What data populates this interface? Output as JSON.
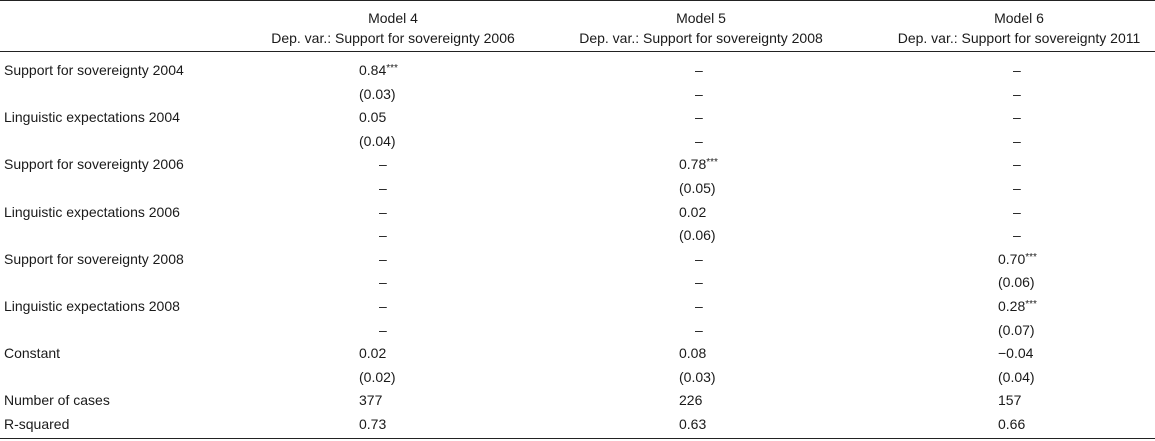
{
  "header": {
    "models": [
      {
        "name": "Model 4",
        "dep_var": "Dep. var.: Support for sovereignty 2006"
      },
      {
        "name": "Model 5",
        "dep_var": "Dep. var.: Support for sovereignty 2008"
      },
      {
        "name": "Model 6",
        "dep_var": "Dep. var.: Support for sovereignty 2011"
      }
    ]
  },
  "rows": [
    {
      "label": "Support for sovereignty 2004",
      "cells": [
        "0.84",
        "–",
        "–"
      ],
      "stars": [
        "***",
        "",
        ""
      ]
    },
    {
      "label": "",
      "cells": [
        "(0.03)",
        "–",
        "–"
      ],
      "stars": [
        "",
        "",
        ""
      ]
    },
    {
      "label": "Linguistic expectations 2004",
      "cells": [
        "0.05",
        "–",
        "–"
      ],
      "stars": [
        "",
        "",
        ""
      ]
    },
    {
      "label": "",
      "cells": [
        "(0.04)",
        "–",
        "–"
      ],
      "stars": [
        "",
        "",
        ""
      ]
    },
    {
      "label": "Support for sovereignty 2006",
      "cells": [
        "–",
        "0.78",
        "–"
      ],
      "stars": [
        "",
        "***",
        ""
      ]
    },
    {
      "label": "",
      "cells": [
        "–",
        "(0.05)",
        "–"
      ],
      "stars": [
        "",
        "",
        ""
      ]
    },
    {
      "label": "Linguistic expectations 2006",
      "cells": [
        "–",
        "0.02",
        "–"
      ],
      "stars": [
        "",
        "",
        ""
      ]
    },
    {
      "label": "",
      "cells": [
        "–",
        "(0.06)",
        "–"
      ],
      "stars": [
        "",
        "",
        ""
      ]
    },
    {
      "label": "Support for sovereignty 2008",
      "cells": [
        "–",
        "–",
        "0.70"
      ],
      "stars": [
        "",
        "",
        "***"
      ]
    },
    {
      "label": "",
      "cells": [
        "–",
        "–",
        "(0.06)"
      ],
      "stars": [
        "",
        "",
        ""
      ]
    },
    {
      "label": "Linguistic expectations 2008",
      "cells": [
        "–",
        "–",
        "0.28"
      ],
      "stars": [
        "",
        "",
        "***"
      ]
    },
    {
      "label": "",
      "cells": [
        "–",
        "–",
        "(0.07)"
      ],
      "stars": [
        "",
        "",
        ""
      ]
    },
    {
      "label": "Constant",
      "cells": [
        "0.02",
        "0.08",
        "−0.04"
      ],
      "stars": [
        "",
        "",
        ""
      ]
    },
    {
      "label": "",
      "cells": [
        "(0.02)",
        "(0.03)",
        "(0.04)"
      ],
      "stars": [
        "",
        "",
        ""
      ]
    },
    {
      "label": "Number of cases",
      "cells": [
        "377",
        "226",
        "157"
      ],
      "stars": [
        "",
        "",
        ""
      ]
    },
    {
      "label": "R-squared",
      "cells": [
        "0.73",
        "0.63",
        "0.66"
      ],
      "stars": [
        "",
        "",
        ""
      ]
    }
  ]
}
